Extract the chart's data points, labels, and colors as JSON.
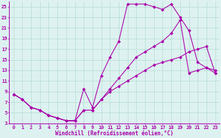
{
  "xlabel": "Windchill (Refroidissement éolien,°C)",
  "xlim": [
    -0.5,
    23.5
  ],
  "ylim": [
    3,
    26
  ],
  "xticks": [
    0,
    1,
    2,
    3,
    4,
    5,
    6,
    7,
    8,
    9,
    10,
    11,
    12,
    13,
    14,
    15,
    16,
    17,
    18,
    19,
    20,
    21,
    22,
    23
  ],
  "yticks": [
    3,
    5,
    7,
    9,
    11,
    13,
    15,
    17,
    19,
    21,
    23,
    25
  ],
  "line_color": "#aa00aa",
  "bg_color": "#ddf2f0",
  "grid_color": "#aad4cc",
  "line1_x": [
    0,
    1,
    2,
    3,
    4,
    5,
    6,
    7,
    8,
    9,
    10,
    11,
    12,
    13,
    14,
    15,
    16,
    17,
    18,
    19,
    20,
    21,
    22,
    23
  ],
  "line1_y": [
    8.5,
    7.5,
    6.0,
    5.5,
    4.5,
    4.0,
    3.5,
    3.5,
    9.5,
    6.0,
    12.0,
    15.5,
    18.5,
    25.5,
    25.5,
    25.5,
    25.0,
    24.5,
    25.5,
    23.0,
    20.5,
    14.5,
    13.5,
    13.0
  ],
  "line2_x": [
    0,
    1,
    2,
    3,
    4,
    5,
    6,
    7,
    8,
    9,
    10,
    11,
    12,
    13,
    14,
    15,
    16,
    17,
    18,
    19,
    20,
    21,
    22,
    23
  ],
  "line2_y": [
    8.5,
    7.5,
    6.0,
    5.5,
    4.5,
    4.0,
    3.5,
    3.5,
    5.5,
    5.5,
    7.5,
    9.5,
    11.5,
    13.5,
    15.5,
    16.5,
    17.5,
    18.5,
    20.0,
    22.5,
    12.5,
    13.0,
    13.5,
    12.5
  ],
  "line3_x": [
    0,
    1,
    2,
    3,
    4,
    5,
    6,
    7,
    8,
    9,
    10,
    11,
    12,
    13,
    14,
    15,
    16,
    17,
    18,
    19,
    20,
    21,
    22,
    23
  ],
  "line3_y": [
    8.5,
    7.5,
    6.0,
    5.5,
    4.5,
    4.0,
    3.5,
    3.5,
    5.5,
    5.5,
    7.5,
    9.0,
    10.0,
    11.0,
    12.0,
    13.0,
    14.0,
    14.5,
    15.0,
    15.5,
    16.5,
    17.0,
    17.5,
    12.5
  ],
  "marker": "D",
  "markersize": 2.0,
  "linewidth": 0.8,
  "tick_fontsize": 5.0,
  "xlabel_fontsize": 5.5
}
